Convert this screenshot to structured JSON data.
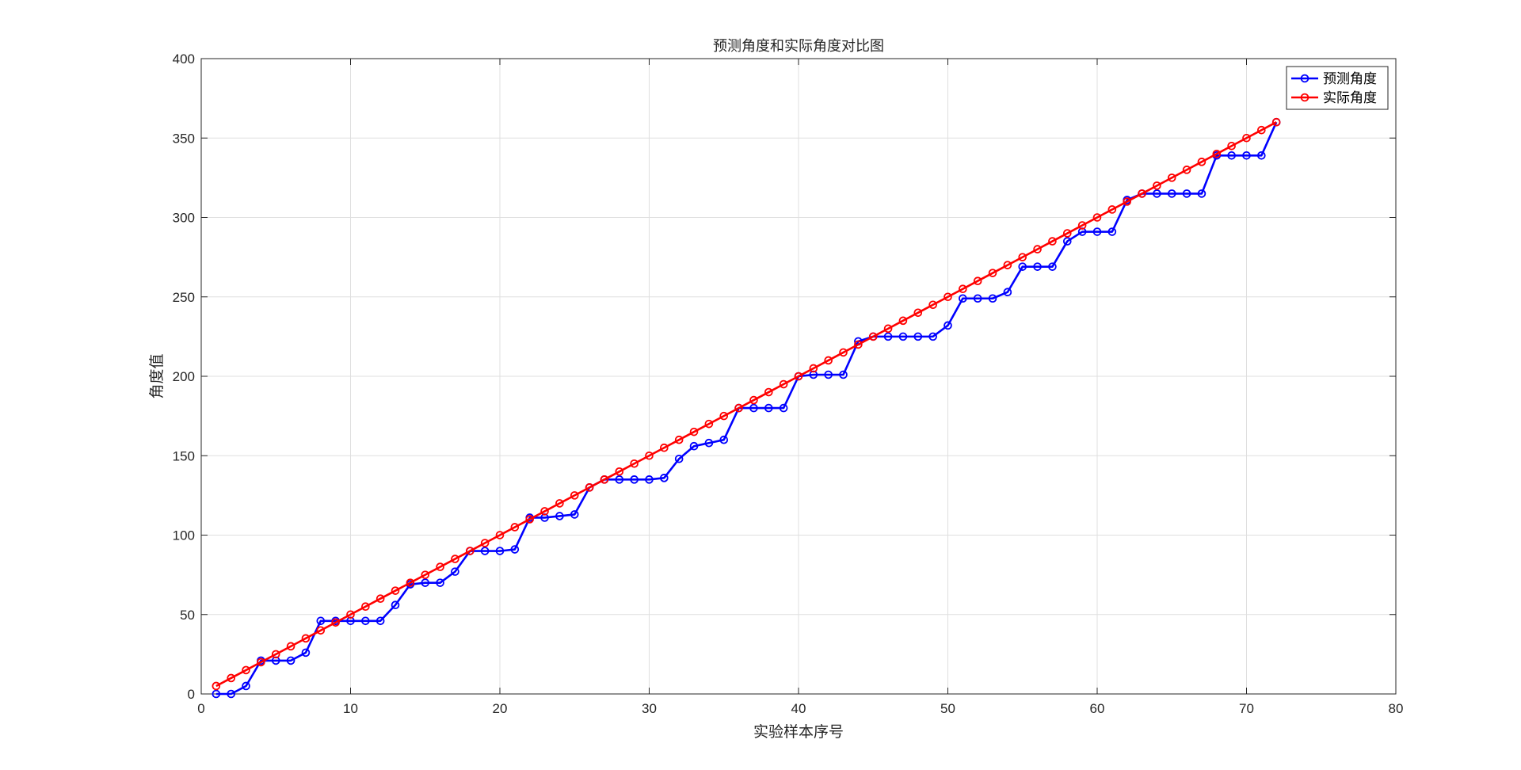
{
  "chart_data": {
    "type": "line",
    "title": "预测角度和实际角度对比图",
    "xlabel": "实验样本序号",
    "ylabel": "角度值",
    "xlim": [
      0,
      80
    ],
    "ylim": [
      0,
      400
    ],
    "xticks": [
      0,
      10,
      20,
      30,
      40,
      50,
      60,
      70,
      80
    ],
    "yticks": [
      0,
      50,
      100,
      150,
      200,
      250,
      300,
      350,
      400
    ],
    "grid": true,
    "legend_position": "top-right",
    "series": [
      {
        "name": "预测角度",
        "color": "#0000ff",
        "marker": "circle",
        "x": [
          1,
          2,
          3,
          4,
          5,
          6,
          7,
          8,
          9,
          10,
          11,
          12,
          13,
          14,
          15,
          16,
          17,
          18,
          19,
          20,
          21,
          22,
          23,
          24,
          25,
          26,
          27,
          28,
          29,
          30,
          31,
          32,
          33,
          34,
          35,
          36,
          37,
          38,
          39,
          40,
          41,
          42,
          43,
          44,
          45,
          46,
          47,
          48,
          49,
          50,
          51,
          52,
          53,
          54,
          55,
          56,
          57,
          58,
          59,
          60,
          61,
          62,
          63,
          64,
          65,
          66,
          67,
          68,
          69,
          70,
          71,
          72
        ],
        "values": [
          0,
          0,
          5,
          21,
          21,
          21,
          26,
          46,
          46,
          46,
          46,
          46,
          56,
          69,
          70,
          70,
          77,
          90,
          90,
          90,
          91,
          111,
          111,
          112,
          113,
          130,
          135,
          135,
          135,
          135,
          136,
          148,
          156,
          158,
          160,
          180,
          180,
          180,
          180,
          200,
          201,
          201,
          201,
          222,
          225,
          225,
          225,
          225,
          225,
          232,
          249,
          249,
          249,
          253,
          269,
          269,
          269,
          285,
          291,
          291,
          291,
          311,
          315,
          315,
          315,
          315,
          315,
          339,
          339,
          339,
          339,
          360
        ]
      },
      {
        "name": "实际角度",
        "color": "#ff0000",
        "marker": "circle",
        "x": [
          1,
          2,
          3,
          4,
          5,
          6,
          7,
          8,
          9,
          10,
          11,
          12,
          13,
          14,
          15,
          16,
          17,
          18,
          19,
          20,
          21,
          22,
          23,
          24,
          25,
          26,
          27,
          28,
          29,
          30,
          31,
          32,
          33,
          34,
          35,
          36,
          37,
          38,
          39,
          40,
          41,
          42,
          43,
          44,
          45,
          46,
          47,
          48,
          49,
          50,
          51,
          52,
          53,
          54,
          55,
          56,
          57,
          58,
          59,
          60,
          61,
          62,
          63,
          64,
          65,
          66,
          67,
          68,
          69,
          70,
          71,
          72
        ],
        "values": [
          5,
          10,
          15,
          20,
          25,
          30,
          35,
          40,
          45,
          50,
          55,
          60,
          65,
          70,
          75,
          80,
          85,
          90,
          95,
          100,
          105,
          110,
          115,
          120,
          125,
          130,
          135,
          140,
          145,
          150,
          155,
          160,
          165,
          170,
          175,
          180,
          185,
          190,
          195,
          200,
          205,
          210,
          215,
          220,
          225,
          230,
          235,
          240,
          245,
          250,
          255,
          260,
          265,
          270,
          275,
          280,
          285,
          290,
          295,
          300,
          305,
          310,
          315,
          320,
          325,
          330,
          335,
          340,
          345,
          350,
          355,
          360
        ]
      }
    ]
  }
}
